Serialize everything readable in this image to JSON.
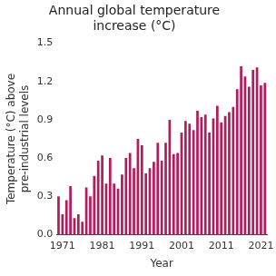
{
  "chart_data": {
    "type": "bar",
    "title": [
      "Annual global temperature",
      "increase (°C)"
    ],
    "x_label": "Year",
    "y_label": [
      "Temperature (°C) above",
      "pre-industrial levels"
    ],
    "categories": [
      null,
      "1971",
      null,
      null,
      null,
      null,
      null,
      null,
      null,
      null,
      null,
      "1981",
      null,
      null,
      null,
      null,
      null,
      null,
      null,
      null,
      null,
      "1991",
      null,
      null,
      null,
      null,
      null,
      null,
      null,
      null,
      null,
      "2001",
      null,
      null,
      null,
      null,
      null,
      null,
      null,
      null,
      null,
      "2011",
      null,
      null,
      null,
      null,
      null,
      null,
      null,
      null,
      null,
      "2021",
      null
    ],
    "values": [
      0.3,
      0.16,
      0.27,
      0.38,
      0.13,
      0.16,
      0.1,
      0.37,
      0.3,
      0.46,
      0.58,
      0.62,
      0.4,
      0.6,
      0.4,
      0.36,
      0.47,
      0.6,
      0.64,
      0.52,
      0.75,
      0.7,
      0.48,
      0.52,
      0.57,
      0.72,
      0.58,
      0.72,
      0.9,
      0.63,
      0.64,
      0.8,
      0.89,
      0.87,
      0.82,
      0.97,
      0.92,
      0.94,
      0.8,
      0.91,
      1.01,
      0.88,
      0.93,
      0.96,
      1.0,
      1.14,
      1.32,
      1.24,
      1.16,
      1.29,
      1.31,
      1.17,
      1.19
    ],
    "color": "#b01c5c",
    "ylim": [
      0,
      1.5
    ],
    "yticks": [
      {
        "value": 0,
        "label": "0.0"
      },
      0.3,
      0.6,
      0.9,
      1.2,
      1.5
    ],
    "grid": false
  }
}
